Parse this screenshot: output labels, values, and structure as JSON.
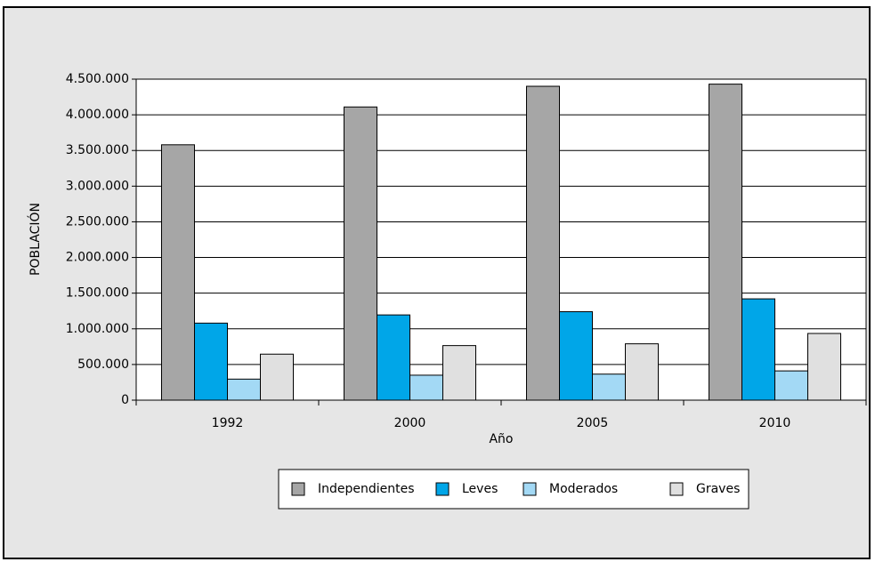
{
  "chart_data": {
    "type": "bar",
    "title": "",
    "xlabel": "Año",
    "ylabel": "POBLACIÓN",
    "categories": [
      "1992",
      "2000",
      "2005",
      "2010"
    ],
    "ylim": [
      0,
      4500000
    ],
    "yticks": [
      0,
      500000,
      1000000,
      1500000,
      2000000,
      2500000,
      3000000,
      3500000,
      4000000,
      4500000
    ],
    "ytick_labels": [
      "0",
      "500.000",
      "1.000.000",
      "1.500.000",
      "2.000.000",
      "2.500.000",
      "3.000.000",
      "3.500.000",
      "4.000.000",
      "4.500.000"
    ],
    "grid": true,
    "legend_position": "bottom",
    "series": [
      {
        "name": "Independientes",
        "color": "#a6a6a6",
        "values": [
          3580000,
          4110000,
          4400000,
          4430000
        ]
      },
      {
        "name": "Leves",
        "color": "#00a6e8",
        "values": [
          1080000,
          1195000,
          1240000,
          1420000
        ]
      },
      {
        "name": "Moderados",
        "color": "#a3d9f5",
        "values": [
          295000,
          350000,
          365000,
          410000
        ]
      },
      {
        "name": "Graves",
        "color": "#e0e0e0",
        "values": [
          645000,
          765000,
          790000,
          935000
        ]
      }
    ]
  }
}
